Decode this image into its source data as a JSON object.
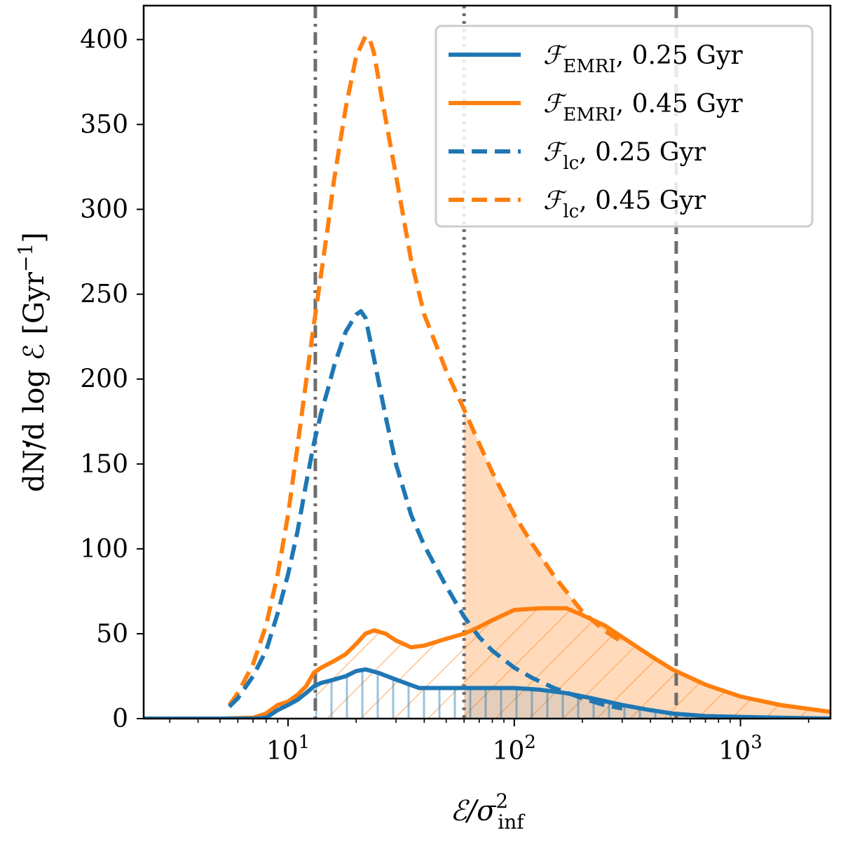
{
  "chart_data": {
    "type": "line",
    "xscale": "log",
    "xlim": [
      2.3,
      2500
    ],
    "ylim": [
      0,
      420
    ],
    "xlabel": "ℰ/σ²_inf",
    "xlabel_parts": {
      "main": "ℰ/σ",
      "sup": "2",
      "sub": "inf"
    },
    "ylabel": "dṄ/d logℰ [Gyr⁻¹]",
    "ylabel_parts": {
      "pre": "dN",
      "dot": "˙",
      "post": "/d log ℰ  [Gyr",
      "sup": "−1",
      "close": "]"
    },
    "yticks": [
      0,
      50,
      100,
      150,
      200,
      250,
      300,
      350,
      400
    ],
    "ytick_labels": [
      "0",
      "50",
      "100",
      "150",
      "200",
      "250",
      "300",
      "350",
      "400"
    ],
    "xticks_major": [
      10,
      100,
      1000
    ],
    "xtick_labels": [
      {
        "base": "10",
        "exp": "1"
      },
      {
        "base": "10",
        "exp": "2"
      },
      {
        "base": "10",
        "exp": "3"
      }
    ],
    "grid": false,
    "legend_position": "top-right",
    "colors": {
      "blue": "#1f77b4",
      "orange": "#ff7f0e",
      "gray": "#6e6e6e"
    },
    "vlines": [
      {
        "x": 13.2,
        "style": "dashdot"
      },
      {
        "x": 60,
        "style": "dotted"
      },
      {
        "x": 520,
        "style": "dashed"
      }
    ],
    "series": [
      {
        "name": "ℱ_EMRI, 0.25 Gyr",
        "name_parts": {
          "main": "ℱ",
          "sub": "EMRI",
          "rest": ", 0.25 Gyr"
        },
        "color": "#1f77b4",
        "style": "solid",
        "x": [
          2.3,
          5,
          7,
          8,
          9,
          10,
          11,
          12,
          13,
          14,
          16,
          18,
          20,
          22,
          25,
          30,
          38,
          50,
          70,
          100,
          130,
          170,
          220,
          300,
          400,
          500,
          700,
          1000,
          1500,
          2500
        ],
        "y": [
          0,
          0,
          0,
          0.5,
          5,
          8,
          11,
          15,
          19,
          21,
          23,
          25,
          28,
          29,
          27,
          23,
          18,
          18,
          18,
          18,
          17,
          15,
          12,
          8,
          5,
          3,
          1.5,
          1,
          0.5,
          0
        ]
      },
      {
        "name": "ℱ_EMRI, 0.45 Gyr",
        "name_parts": {
          "main": "ℱ",
          "sub": "EMRI",
          "rest": ", 0.45 Gyr"
        },
        "color": "#ff7f0e",
        "style": "solid",
        "x": [
          2.3,
          5,
          7,
          8,
          9,
          10,
          11,
          12,
          13,
          14,
          16,
          18,
          20,
          22,
          24,
          27,
          30,
          35,
          40,
          50,
          60,
          70,
          80,
          100,
          130,
          170,
          200,
          250,
          300,
          400,
          500,
          700,
          1000,
          1500,
          2500
        ],
        "y": [
          0,
          0,
          0.5,
          3,
          8,
          10,
          14,
          19,
          27,
          30,
          34,
          38,
          44,
          50,
          52,
          50,
          46,
          42,
          43,
          47,
          50,
          54,
          58,
          64,
          65,
          65,
          61,
          55,
          48,
          37,
          29,
          20,
          13,
          8,
          4
        ]
      },
      {
        "name": "ℱ_lc, 0.25 Gyr",
        "name_parts": {
          "main": "ℱ",
          "sub": "lc",
          "rest": ", 0.25 Gyr"
        },
        "color": "#1f77b4",
        "style": "dashed",
        "x": [
          5.5,
          6,
          7,
          8,
          9,
          10,
          11,
          12,
          13,
          14,
          15,
          16,
          18,
          20,
          21,
          22,
          24,
          27,
          30,
          35,
          40,
          50,
          60,
          70,
          80,
          100,
          120,
          150,
          200,
          250,
          300
        ],
        "y": [
          7,
          12,
          25,
          40,
          62,
          85,
          110,
          138,
          162,
          180,
          194,
          208,
          228,
          238,
          240,
          236,
          212,
          178,
          150,
          120,
          102,
          78,
          60,
          48,
          40,
          30,
          24,
          18,
          12,
          8,
          6
        ]
      },
      {
        "name": "ℱ_lc, 0.45 Gyr",
        "name_parts": {
          "main": "ℱ",
          "sub": "lc",
          "rest": ", 0.45 Gyr"
        },
        "color": "#ff7f0e",
        "style": "dashed",
        "x": [
          5.5,
          6,
          7,
          8,
          9,
          10,
          11,
          12,
          13,
          14,
          15,
          16,
          18,
          20,
          22,
          23,
          24,
          26,
          30,
          35,
          40,
          50,
          60,
          70,
          80,
          100,
          120,
          150,
          200,
          250,
          300
        ],
        "y": [
          8,
          15,
          32,
          55,
          85,
          120,
          160,
          198,
          232,
          262,
          290,
          318,
          360,
          390,
          402,
          400,
          392,
          365,
          320,
          270,
          238,
          205,
          182,
          162,
          145,
          120,
          103,
          84,
          63,
          52,
          45
        ]
      }
    ]
  }
}
